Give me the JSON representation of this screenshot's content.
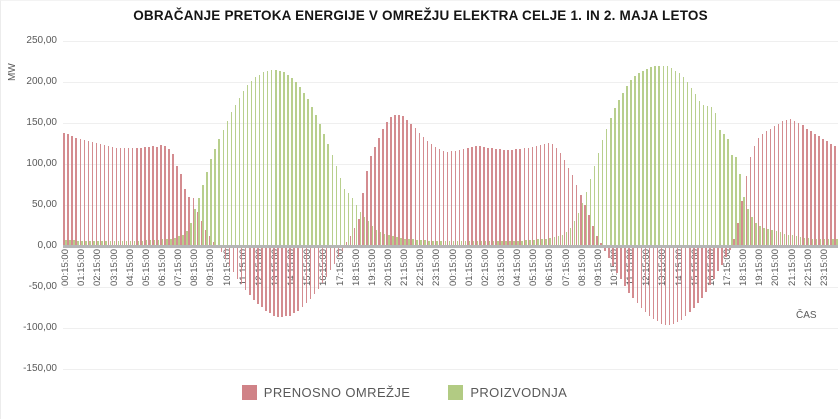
{
  "chart_data": {
    "type": "bar",
    "title": "OBRAČANJE PRETOKA ENERGIJE V OMREŽJU ELEKTRA CELJE 1. IN 2. MAJA LETOS",
    "xlabel": "ČAS",
    "ylabel": "MW",
    "ylim": [
      -150,
      250
    ],
    "grid": "horizontal",
    "legend_position": "bottom",
    "interval_minutes": 15,
    "x_ticks_every_n_bars": 4,
    "y_tick_values": [
      250,
      200,
      150,
      100,
      50,
      0,
      -50,
      -100,
      -150
    ],
    "y_tick_labels": [
      "250,00",
      "200,00",
      "150,00",
      "100,00",
      "50,00",
      "0,00",
      "-50,00",
      "-100,00",
      "-150,00"
    ],
    "x_tick_labels": [
      "00:15:00",
      "01:15:00",
      "02:15:00",
      "03:15:00",
      "04:15:00",
      "05:15:00",
      "06:15:00",
      "07:15:00",
      "08:15:00",
      "09:15:00",
      "10:15:00",
      "11:15:00",
      "12:15:00",
      "13:15:00",
      "14:15:00",
      "15:15:00",
      "16:15:00",
      "17:15:00",
      "18:15:00",
      "19:15:00",
      "20:15:00",
      "21:15:00",
      "22:15:00",
      "23:15:00",
      "00:15:00",
      "01:15:00",
      "02:15:00",
      "03:15:00",
      "04:15:00",
      "05:15:00",
      "06:15:00",
      "07:15:00",
      "08:15:00",
      "09:15:00",
      "10:15:00",
      "11:15:00",
      "12:15:00",
      "13:15:00",
      "14:15:00",
      "15:15:00",
      "16:15:00",
      "17:15:00",
      "18:15:00",
      "19:15:00",
      "20:15:00",
      "21:15:00",
      "22:15:00",
      "23:15:00"
    ],
    "series": [
      {
        "name": "PRENOSNO OMREŽJE",
        "color": "#d08287",
        "values": [
          138,
          136,
          134,
          132,
          130,
          129,
          128,
          127,
          126,
          124,
          123,
          122,
          121,
          120,
          120,
          119,
          119,
          119,
          120,
          120,
          121,
          121,
          122,
          121,
          123,
          122,
          118,
          112,
          98,
          88,
          70,
          60,
          59,
          42,
          31,
          19,
          12,
          5,
          0,
          -6,
          -14,
          -22,
          -30,
          -38,
          -45,
          -52,
          -58,
          -64,
          -69,
          -73,
          -77,
          -80,
          -83,
          -85,
          -85,
          -84,
          -83,
          -80,
          -77,
          -73,
          -68,
          -63,
          -57,
          -50,
          -43,
          -36,
          -28,
          -20,
          -12,
          -4,
          5,
          12,
          22,
          33,
          65,
          92,
          110,
          121,
          132,
          143,
          151,
          157,
          160,
          160,
          158,
          154,
          149,
          144,
          138,
          133,
          128,
          124,
          121,
          118,
          116,
          115,
          116,
          116,
          117,
          118,
          119,
          121,
          122,
          122,
          121,
          120,
          119,
          118,
          118,
          117,
          117,
          117,
          118,
          118,
          119,
          120,
          121,
          122,
          123,
          124,
          126,
          124,
          120,
          113,
          105,
          95,
          86,
          74,
          62,
          50,
          38,
          24,
          12,
          4,
          -4,
          -13,
          -22,
          -31,
          -39,
          -47,
          -55,
          -62,
          -68,
          -74,
          -79,
          -83,
          -87,
          -90,
          -93,
          -94,
          -94,
          -93,
          -91,
          -88,
          -84,
          -79,
          -74,
          -68,
          -61,
          -54,
          -46,
          -38,
          -29,
          -21,
          -12,
          -3,
          8,
          28,
          55,
          85,
          108,
          122,
          132,
          137,
          140,
          143,
          146,
          149,
          152,
          154,
          155,
          153,
          150,
          147,
          143,
          140,
          137,
          134,
          131,
          128,
          125,
          122
        ]
      },
      {
        "name": "PROIZVODNJA",
        "color": "#b2cb83",
        "values": [
          7,
          7,
          7,
          6,
          6,
          6,
          6,
          6,
          6,
          6,
          6,
          6,
          6,
          6,
          6,
          6,
          6,
          6,
          6,
          6,
          7,
          7,
          7,
          7,
          8,
          8,
          9,
          10,
          12,
          14,
          18,
          28,
          45,
          58,
          74,
          90,
          106,
          118,
          130,
          142,
          153,
          163,
          172,
          181,
          189,
          196,
          201,
          206,
          209,
          212,
          214,
          215,
          215,
          214,
          212,
          209,
          205,
          200,
          194,
          187,
          179,
          170,
          160,
          149,
          137,
          124,
          111,
          97,
          83,
          70,
          65,
          58,
          50,
          42,
          35,
          30,
          24,
          20,
          17,
          15,
          13,
          12,
          11,
          10,
          9,
          8,
          8,
          7,
          7,
          7,
          6,
          6,
          6,
          6,
          6,
          6,
          6,
          6,
          6,
          6,
          6,
          6,
          6,
          6,
          6,
          6,
          6,
          6,
          6,
          6,
          6,
          6,
          6,
          6,
          7,
          7,
          7,
          8,
          8,
          9,
          10,
          11,
          12,
          14,
          17,
          22,
          30,
          40,
          52,
          66,
          82,
          98,
          114,
          129,
          143,
          156,
          168,
          178,
          187,
          195,
          202,
          207,
          211,
          214,
          216,
          218,
          219,
          220,
          220,
          219,
          217,
          214,
          211,
          206,
          200,
          193,
          185,
          177,
          172,
          171,
          170,
          162,
          141,
          137,
          131,
          111,
          109,
          88,
          60,
          45,
          35,
          28,
          25,
          22,
          21,
          20,
          18,
          17,
          15,
          14,
          13,
          12,
          11,
          10,
          10,
          9,
          9,
          8,
          8,
          8,
          8,
          8
        ]
      }
    ]
  }
}
